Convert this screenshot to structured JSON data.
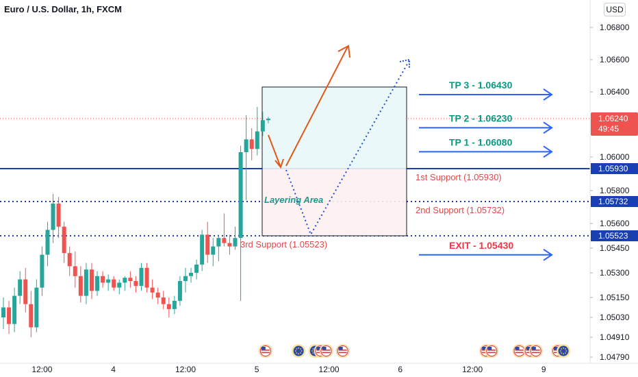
{
  "header": {
    "title": "Euro / U.S. Dollar, 1h, FXCM",
    "currency_button": "USD"
  },
  "chart_data": {
    "type": "candlestick",
    "title": "Euro / U.S. Dollar, 1h, FXCM",
    "y_ticks": [
      1.068,
      1.066,
      1.064,
      1.06,
      1.058,
      1.056,
      1.0545,
      1.053,
      1.0515,
      1.0503,
      1.0491,
      1.0479
    ],
    "y_tick_labels": [
      "1.06800",
      "1.06600",
      "1.06400",
      "1.06000",
      "1.05800",
      "1.05600",
      "1.05450",
      "1.05300",
      "1.05150",
      "1.05030",
      "1.04910",
      "1.04790"
    ],
    "x_tick_labels": [
      {
        "label": "12:00",
        "i": 7
      },
      {
        "label": "4",
        "i": 20
      },
      {
        "label": "12:00",
        "i": 33
      },
      {
        "label": "5",
        "i": 46
      },
      {
        "label": "12:00",
        "i": 59
      },
      {
        "label": "6",
        "i": 72
      },
      {
        "label": "12:00",
        "i": 85
      },
      {
        "label": "9",
        "i": 98
      }
    ],
    "colors": {
      "up": "#26a69a",
      "down": "#ef5350",
      "support": "#1a3fb0",
      "target": "#2962ff",
      "trend_arrow": "#e0581a"
    },
    "candles": [
      {
        "o": 1.0503,
        "h": 1.0515,
        "l": 1.0496,
        "c": 1.0509
      },
      {
        "o": 1.0509,
        "h": 1.0513,
        "l": 1.0493,
        "c": 1.0499
      },
      {
        "o": 1.0499,
        "h": 1.0521,
        "l": 1.0494,
        "c": 1.0516
      },
      {
        "o": 1.0516,
        "h": 1.0531,
        "l": 1.0511,
        "c": 1.0526
      },
      {
        "o": 1.0526,
        "h": 1.0533,
        "l": 1.0506,
        "c": 1.0511
      },
      {
        "o": 1.0511,
        "h": 1.0519,
        "l": 1.0491,
        "c": 1.0497
      },
      {
        "o": 1.0497,
        "h": 1.0526,
        "l": 1.0494,
        "c": 1.0521
      },
      {
        "o": 1.0521,
        "h": 1.0546,
        "l": 1.0516,
        "c": 1.0541
      },
      {
        "o": 1.0541,
        "h": 1.0561,
        "l": 1.0534,
        "c": 1.0556
      },
      {
        "o": 1.0556,
        "h": 1.0578,
        "l": 1.0548,
        "c": 1.0572
      },
      {
        "o": 1.0572,
        "h": 1.0576,
        "l": 1.0551,
        "c": 1.0558
      },
      {
        "o": 1.0558,
        "h": 1.0561,
        "l": 1.0536,
        "c": 1.0542
      },
      {
        "o": 1.0542,
        "h": 1.0546,
        "l": 1.0528,
        "c": 1.0534
      },
      {
        "o": 1.0534,
        "h": 1.0543,
        "l": 1.0521,
        "c": 1.0528
      },
      {
        "o": 1.0528,
        "h": 1.0534,
        "l": 1.0512,
        "c": 1.0516
      },
      {
        "o": 1.0516,
        "h": 1.0536,
        "l": 1.0511,
        "c": 1.0532
      },
      {
        "o": 1.0532,
        "h": 1.0536,
        "l": 1.0514,
        "c": 1.0519
      },
      {
        "o": 1.0519,
        "h": 1.0531,
        "l": 1.0516,
        "c": 1.0528
      },
      {
        "o": 1.0528,
        "h": 1.0531,
        "l": 1.0521,
        "c": 1.0524
      },
      {
        "o": 1.0524,
        "h": 1.0529,
        "l": 1.0519,
        "c": 1.0526
      },
      {
        "o": 1.0526,
        "h": 1.0528,
        "l": 1.0519,
        "c": 1.0521
      },
      {
        "o": 1.0521,
        "h": 1.0526,
        "l": 1.0517,
        "c": 1.0524
      },
      {
        "o": 1.0524,
        "h": 1.0528,
        "l": 1.0519,
        "c": 1.0527
      },
      {
        "o": 1.0527,
        "h": 1.0531,
        "l": 1.0521,
        "c": 1.0525
      },
      {
        "o": 1.0525,
        "h": 1.0528,
        "l": 1.0518,
        "c": 1.0522
      },
      {
        "o": 1.0522,
        "h": 1.0536,
        "l": 1.0519,
        "c": 1.0533
      },
      {
        "o": 1.0533,
        "h": 1.0536,
        "l": 1.0518,
        "c": 1.0521
      },
      {
        "o": 1.0521,
        "h": 1.0526,
        "l": 1.0514,
        "c": 1.0518
      },
      {
        "o": 1.0518,
        "h": 1.0521,
        "l": 1.0511,
        "c": 1.0515
      },
      {
        "o": 1.0515,
        "h": 1.0519,
        "l": 1.0508,
        "c": 1.0511
      },
      {
        "o": 1.0511,
        "h": 1.0515,
        "l": 1.0503,
        "c": 1.0508
      },
      {
        "o": 1.0508,
        "h": 1.0516,
        "l": 1.0505,
        "c": 1.0513
      },
      {
        "o": 1.0513,
        "h": 1.0528,
        "l": 1.051,
        "c": 1.0525
      },
      {
        "o": 1.0525,
        "h": 1.0533,
        "l": 1.0518,
        "c": 1.0528
      },
      {
        "o": 1.0528,
        "h": 1.0533,
        "l": 1.0524,
        "c": 1.053
      },
      {
        "o": 1.053,
        "h": 1.0538,
        "l": 1.0526,
        "c": 1.0535
      },
      {
        "o": 1.0535,
        "h": 1.0556,
        "l": 1.0531,
        "c": 1.0553
      },
      {
        "o": 1.0553,
        "h": 1.0561,
        "l": 1.0536,
        "c": 1.0541
      },
      {
        "o": 1.0541,
        "h": 1.0551,
        "l": 1.0534,
        "c": 1.0546
      },
      {
        "o": 1.0546,
        "h": 1.0553,
        "l": 1.0537,
        "c": 1.0551
      },
      {
        "o": 1.0551,
        "h": 1.0566,
        "l": 1.0546,
        "c": 1.0548
      },
      {
        "o": 1.0548,
        "h": 1.0553,
        "l": 1.0541,
        "c": 1.0546
      },
      {
        "o": 1.0546,
        "h": 1.0558,
        "l": 1.0544,
        "c": 1.0551
      },
      {
        "o": 1.0551,
        "h": 1.0607,
        "l": 1.0513,
        "c": 1.0603
      },
      {
        "o": 1.0603,
        "h": 1.0626,
        "l": 1.0574,
        "c": 1.0611
      },
      {
        "o": 1.0611,
        "h": 1.0618,
        "l": 1.0598,
        "c": 1.0605
      },
      {
        "o": 1.0605,
        "h": 1.0631,
        "l": 1.0601,
        "c": 1.0616
      },
      {
        "o": 1.0616,
        "h": 1.0628,
        "l": 1.0613,
        "c": 1.0623
      },
      {
        "o": 1.0623,
        "h": 1.0625,
        "l": 1.0621,
        "c": 1.0624
      }
    ],
    "price_line": {
      "value": 1.0624,
      "label": "1.06240",
      "countdown": "49:45"
    },
    "levels": [
      {
        "name": "1st Support",
        "value": 1.0593,
        "label": "1st Support (1.05930)",
        "axis_label": "1.05930",
        "style": "solid"
      },
      {
        "name": "2nd Support",
        "value": 1.05732,
        "label": "2nd Support (1.05732)",
        "axis_label": "1.05732",
        "style": "dotted"
      },
      {
        "name": "3rd Support",
        "value": 1.05523,
        "label": "3rd Support (1.05523)",
        "axis_label": "1.05523",
        "style": "dotted"
      }
    ],
    "targets": [
      {
        "label": "TP 3 - 1.06430",
        "value": 1.0643,
        "color": "#089981"
      },
      {
        "label": "TP 2 - 1.06230",
        "value": 1.0623,
        "color": "#089981"
      },
      {
        "label": "TP 1 - 1.06080",
        "value": 1.0608,
        "color": "#089981"
      },
      {
        "label": "EXIT - 1.05430",
        "value": 1.0543,
        "color": "#f23645"
      }
    ],
    "zone": {
      "label": "Layering Area",
      "top": 1.0643,
      "mid": 1.0593,
      "bottom": 1.05523
    },
    "events": [
      {
        "i": 47,
        "kind": "us"
      },
      {
        "i": 53,
        "kind": "eu"
      },
      {
        "i": 56,
        "kind": "eu"
      },
      {
        "i": 57,
        "kind": "us"
      },
      {
        "i": 58,
        "kind": "us"
      },
      {
        "i": 61,
        "kind": "us"
      },
      {
        "i": 87,
        "kind": "us"
      },
      {
        "i": 88,
        "kind": "us"
      },
      {
        "i": 93,
        "kind": "us"
      },
      {
        "i": 95,
        "kind": "us"
      },
      {
        "i": 96,
        "kind": "us"
      },
      {
        "i": 100,
        "kind": "us"
      },
      {
        "i": 101,
        "kind": "eu"
      }
    ]
  }
}
